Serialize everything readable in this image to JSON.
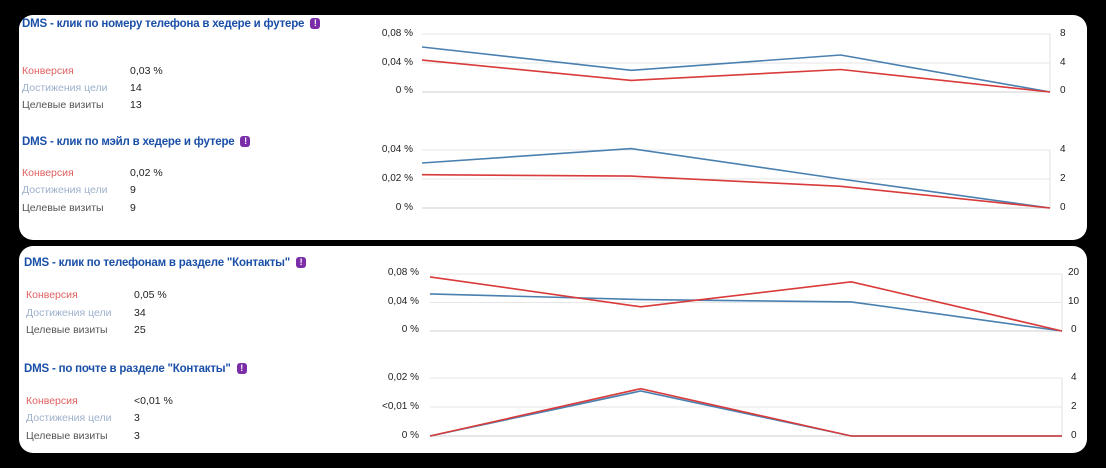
{
  "goals": [
    {
      "title": "DMS - клик по номеру телефона в хедере и футере",
      "badge": "!",
      "metrics": {
        "conversion_label": "Конверсия",
        "conversion_value": "0,03 %",
        "achievements_label": "Достижения цели",
        "achievements_value": "14",
        "visits_label": "Целевые визиты",
        "visits_value": "13"
      },
      "chart_data": {
        "type": "line",
        "x": [
          0,
          1,
          2,
          3
        ],
        "left_ticks": [
          "0,08 %",
          "0,04 %",
          "0 %"
        ],
        "right_ticks": [
          "8",
          "4",
          "0"
        ],
        "left_ylim": [
          0,
          0.08
        ],
        "right_ylim": [
          0,
          8
        ],
        "series": [
          {
            "axis": "left",
            "color": "#d93a3a",
            "values": [
              0.044,
              0.016,
              0.031,
              0
            ]
          },
          {
            "axis": "right",
            "color": "#4a80b0",
            "values": [
              6.2,
              3.0,
              5.1,
              0
            ]
          }
        ]
      }
    },
    {
      "title": "DMS - клик по мэйл в хедере и футере",
      "badge": "!",
      "metrics": {
        "conversion_label": "Конверсия",
        "conversion_value": "0,02 %",
        "achievements_label": "Достижения цели",
        "achievements_value": "9",
        "visits_label": "Целевые визиты",
        "visits_value": "9"
      },
      "chart_data": {
        "type": "line",
        "x": [
          0,
          1,
          2,
          3
        ],
        "left_ticks": [
          "0,04 %",
          "0,02 %",
          "0 %"
        ],
        "right_ticks": [
          "4",
          "2",
          "0"
        ],
        "left_ylim": [
          0,
          0.04
        ],
        "right_ylim": [
          0,
          4
        ],
        "series": [
          {
            "axis": "left",
            "color": "#d93a3a",
            "values": [
              0.023,
              0.022,
              0.015,
              0
            ]
          },
          {
            "axis": "right",
            "color": "#4a80b0",
            "values": [
              3.1,
              4.1,
              2.0,
              0
            ]
          }
        ]
      }
    },
    {
      "title": "DMS - клик по телефонам в разделе \"Контакты\"",
      "badge": "!",
      "metrics": {
        "conversion_label": "Конверсия",
        "conversion_value": "0,05 %",
        "achievements_label": "Достижения цели",
        "achievements_value": "34",
        "visits_label": "Целевые визиты",
        "visits_value": "25"
      },
      "chart_data": {
        "type": "line",
        "x": [
          0,
          1,
          2,
          3
        ],
        "left_ticks": [
          "0,08 %",
          "0,04 %",
          "0 %"
        ],
        "right_ticks": [
          "20",
          "10",
          "0"
        ],
        "left_ylim": [
          0,
          0.08
        ],
        "right_ylim": [
          0,
          20
        ],
        "series": [
          {
            "axis": "left",
            "color": "#d93a3a",
            "values": [
              0.076,
              0.034,
              0.069,
              0
            ]
          },
          {
            "axis": "right",
            "color": "#4a80b0",
            "values": [
              13,
              11,
              10.2,
              0
            ]
          }
        ]
      }
    },
    {
      "title": "DMS - по почте в разделе \"Контакты\"",
      "badge": "!",
      "metrics": {
        "conversion_label": "Конверсия",
        "conversion_value": "<0,01 %",
        "achievements_label": "Достижения цели",
        "achievements_value": "3",
        "visits_label": "Целевые визиты",
        "visits_value": "3"
      },
      "chart_data": {
        "type": "line",
        "x": [
          0,
          1,
          2,
          3
        ],
        "left_ticks": [
          "0,02 %",
          "<0,01 %",
          "0 %"
        ],
        "right_ticks": [
          "4",
          "2",
          "0"
        ],
        "left_ylim": [
          0,
          0.02
        ],
        "right_ylim": [
          0,
          4
        ],
        "series": [
          {
            "axis": "left",
            "color": "#d93a3a",
            "values": [
              0,
              0.0163,
              0,
              0
            ]
          },
          {
            "axis": "right",
            "color": "#4a80b0",
            "values": [
              0,
              3.1,
              0,
              0
            ]
          }
        ]
      }
    }
  ]
}
